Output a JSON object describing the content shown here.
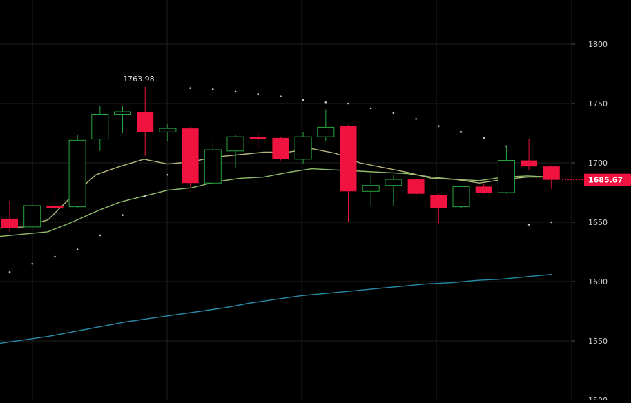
{
  "colors": {
    "background": "#000000",
    "grid": "#1f1f1f",
    "up": "#26a641",
    "down": "#f0133f",
    "ma_fast": "#b7b47a",
    "ma_slow": "#8fbe6a",
    "ma_long": "#2a8ba8",
    "psar": "#c8c8c8",
    "axis_text": "#d0d0d0",
    "price_marker": "#f0133f",
    "high_label": "#d8d8d8"
  },
  "chart_data": {
    "type": "candlestick",
    "y_range": [
      1500,
      1830
    ],
    "y_ticks": [
      1500,
      1550,
      1600,
      1650,
      1700,
      1750,
      1800
    ],
    "grid": true,
    "candles": [
      {
        "o": 1653,
        "h": 1668,
        "l": 1642,
        "c": 1645
      },
      {
        "o": 1646,
        "h": 1665,
        "l": 1645,
        "c": 1664
      },
      {
        "o": 1664,
        "h": 1677,
        "l": 1660,
        "c": 1662
      },
      {
        "o": 1663,
        "h": 1724,
        "l": 1662,
        "c": 1719
      },
      {
        "o": 1720,
        "h": 1748,
        "l": 1710,
        "c": 1741
      },
      {
        "o": 1741,
        "h": 1748,
        "l": 1725,
        "c": 1743
      },
      {
        "o": 1743,
        "h": 1763.98,
        "l": 1706,
        "c": 1726
      },
      {
        "o": 1726,
        "h": 1733,
        "l": 1718,
        "c": 1729
      },
      {
        "o": 1729,
        "h": 1730,
        "l": 1680,
        "c": 1683
      },
      {
        "o": 1683,
        "h": 1717,
        "l": 1682,
        "c": 1711
      },
      {
        "o": 1710,
        "h": 1724,
        "l": 1696,
        "c": 1722
      },
      {
        "o": 1722,
        "h": 1726,
        "l": 1712,
        "c": 1720
      },
      {
        "o": 1721,
        "h": 1722,
        "l": 1702,
        "c": 1703
      },
      {
        "o": 1703,
        "h": 1726,
        "l": 1699,
        "c": 1722
      },
      {
        "o": 1722,
        "h": 1745,
        "l": 1718,
        "c": 1730
      },
      {
        "o": 1731,
        "h": 1732,
        "l": 1650,
        "c": 1676
      },
      {
        "o": 1676,
        "h": 1691,
        "l": 1664,
        "c": 1681
      },
      {
        "o": 1681,
        "h": 1690,
        "l": 1664,
        "c": 1686
      },
      {
        "o": 1686,
        "h": 1687,
        "l": 1667,
        "c": 1674
      },
      {
        "o": 1673,
        "h": 1674,
        "l": 1649,
        "c": 1662
      },
      {
        "o": 1663,
        "h": 1681,
        "l": 1662,
        "c": 1680
      },
      {
        "o": 1680,
        "h": 1682,
        "l": 1674,
        "c": 1675
      },
      {
        "o": 1675,
        "h": 1714,
        "l": 1674,
        "c": 1702
      },
      {
        "o": 1702,
        "h": 1720,
        "l": 1694,
        "c": 1697
      },
      {
        "o": 1697,
        "h": 1698,
        "l": 1678,
        "c": 1685.67
      }
    ],
    "ma_fast": [
      1645,
      1646,
      1652,
      1672,
      1690,
      1697,
      1703,
      1699,
      1701,
      1705,
      1707,
      1709,
      1709,
      1712,
      1708,
      1700,
      1696,
      1692,
      1687,
      1686,
      1683,
      1686,
      1688,
      1688
    ],
    "ma_slow": [
      1638,
      1640,
      1642,
      1650,
      1659,
      1667,
      1672,
      1677,
      1679,
      1684,
      1687,
      1688,
      1692,
      1695,
      1694,
      1693,
      1692,
      1691,
      1688,
      1686,
      1685,
      1688,
      1689,
      1688
    ],
    "ma_long": [
      1548,
      1551,
      1554,
      1558,
      1562,
      1566,
      1569,
      1572,
      1575,
      1578,
      1582,
      1585,
      1588,
      1590,
      1592,
      1594,
      1596,
      1598,
      1599,
      1601,
      1602,
      1604,
      1606
    ],
    "psar": [
      {
        "i": 0,
        "v": 1608
      },
      {
        "i": 1,
        "v": 1615
      },
      {
        "i": 2,
        "v": 1621
      },
      {
        "i": 3,
        "v": 1627
      },
      {
        "i": 4,
        "v": 1639
      },
      {
        "i": 5,
        "v": 1656
      },
      {
        "i": 6,
        "v": 1672
      },
      {
        "i": 7,
        "v": 1690
      },
      {
        "i": 8,
        "v": 1763
      },
      {
        "i": 9,
        "v": 1762
      },
      {
        "i": 10,
        "v": 1760
      },
      {
        "i": 11,
        "v": 1758
      },
      {
        "i": 12,
        "v": 1756
      },
      {
        "i": 13,
        "v": 1753
      },
      {
        "i": 14,
        "v": 1751
      },
      {
        "i": 15,
        "v": 1750
      },
      {
        "i": 16,
        "v": 1746
      },
      {
        "i": 17,
        "v": 1742
      },
      {
        "i": 18,
        "v": 1737
      },
      {
        "i": 19,
        "v": 1731
      },
      {
        "i": 20,
        "v": 1726
      },
      {
        "i": 21,
        "v": 1721
      },
      {
        "i": 22,
        "v": 1714
      },
      {
        "i": 23,
        "v": 1648
      },
      {
        "i": 24,
        "v": 1650
      }
    ],
    "high_label": {
      "index": 6,
      "value": 1763.98,
      "text": "1763.98"
    },
    "last_price": {
      "value": 1685.67,
      "text": "1685.67"
    }
  }
}
